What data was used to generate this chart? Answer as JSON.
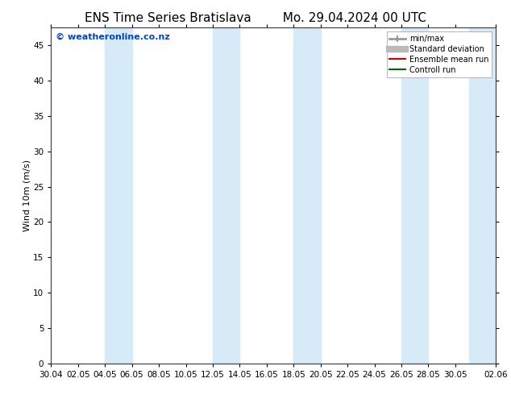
{
  "title_left": "ENS Time Series Bratislava",
  "title_right": "Mo. 29.04.2024 00 UTC",
  "ylabel": "Wind 10m (m/s)",
  "bg_color": "#ffffff",
  "plot_bg_color": "#ffffff",
  "watermark": "© weatheronline.co.nz",
  "watermark_color": "#0044cc",
  "ylim": [
    0,
    47.5
  ],
  "yticks": [
    0,
    5,
    10,
    15,
    20,
    25,
    30,
    35,
    40,
    45
  ],
  "x_start": 0,
  "x_end": 33,
  "xtick_labels": [
    "30.04",
    "02.05",
    "04.05",
    "06.05",
    "08.05",
    "10.05",
    "12.05",
    "14.05",
    "16.05",
    "18.05",
    "20.05",
    "22.05",
    "24.05",
    "26.05",
    "28.05",
    "30.05",
    "02.06"
  ],
  "xtick_positions": [
    0,
    2,
    4,
    6,
    8,
    10,
    12,
    14,
    16,
    18,
    20,
    22,
    24,
    26,
    28,
    30,
    33
  ],
  "shaded_bands": [
    {
      "x_start": 4,
      "x_end": 6,
      "color": "#d6eaf8"
    },
    {
      "x_start": 12,
      "x_end": 14,
      "color": "#d6eaf8"
    },
    {
      "x_start": 18,
      "x_end": 20,
      "color": "#d6eaf8"
    },
    {
      "x_start": 26,
      "x_end": 28,
      "color": "#d6eaf8"
    },
    {
      "x_start": 31,
      "x_end": 33,
      "color": "#d6eaf8"
    }
  ],
  "legend_items": [
    {
      "label": "min/max",
      "color": "#999999",
      "lw": 2
    },
    {
      "label": "Standard deviation",
      "color": "#bbbbbb",
      "lw": 6
    },
    {
      "label": "Ensemble mean run",
      "color": "#cc0000",
      "lw": 1.5
    },
    {
      "label": "Controll run",
      "color": "#006600",
      "lw": 1.5
    }
  ],
  "title_fontsize": 11,
  "axis_label_fontsize": 8,
  "tick_fontsize": 7.5,
  "watermark_fontsize": 8,
  "spine_color": "#444444"
}
